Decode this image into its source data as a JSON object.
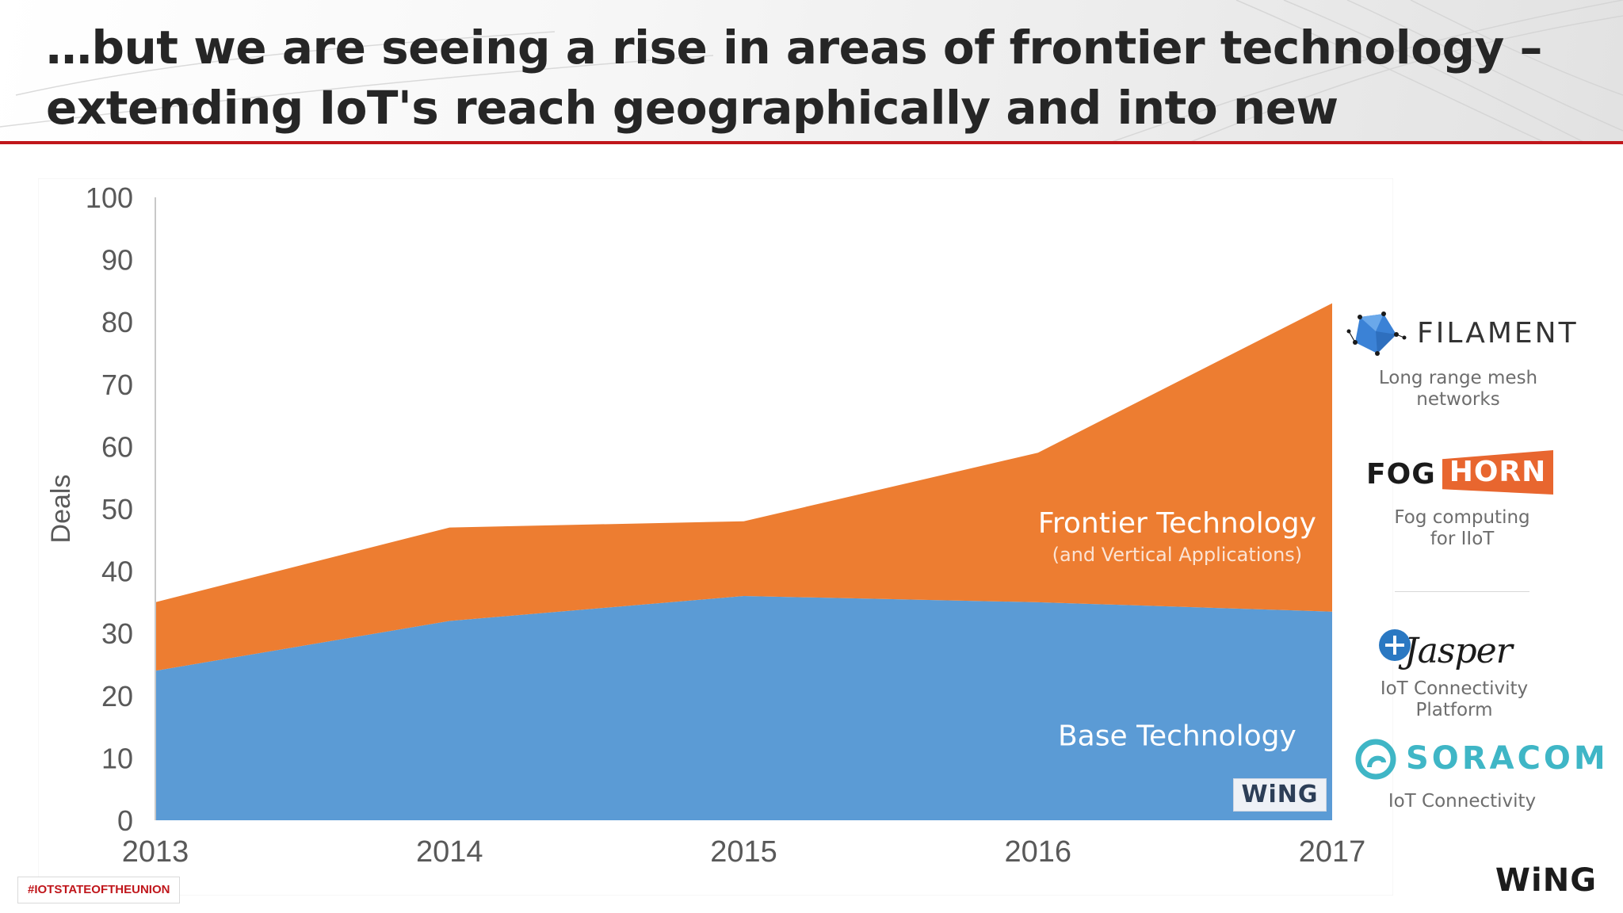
{
  "header": {
    "title_line1": "…but we are seeing a rise in areas of frontier technology –",
    "title_line2": "extending IoT's reach geographically and into new industries."
  },
  "chart_data": {
    "type": "area",
    "stacked": true,
    "x": [
      "2013",
      "2014",
      "2015",
      "2016",
      "2017"
    ],
    "series": [
      {
        "name": "Base Technology",
        "values": [
          24,
          32,
          36,
          35,
          33.5
        ],
        "color": "#5b9bd5"
      },
      {
        "name": "Frontier Technology",
        "sublabel": "(and Vertical Applications)",
        "values": [
          11,
          15,
          12,
          24,
          49.5
        ],
        "color": "#ed7d31"
      }
    ],
    "ylabel": "Deals",
    "ylim": [
      0,
      100
    ],
    "yticks": [
      "0",
      "10",
      "20",
      "30",
      "40",
      "50",
      "60",
      "70",
      "80",
      "90",
      "100"
    ],
    "grid": false
  },
  "logos": {
    "filament": {
      "name": "FILAMENT",
      "caption_line1": "Long range mesh",
      "caption_line2": "networks"
    },
    "foghorn": {
      "name_a": "FOG",
      "name_b": "HORN",
      "caption_line1": "Fog computing",
      "caption_line2": "for IIoT"
    },
    "jasper": {
      "name": "Jasper",
      "caption": "IoT Connectivity Platform"
    },
    "soracom": {
      "name": "SORACOM",
      "caption": "IoT Connectivity"
    }
  },
  "brand": {
    "chart_badge": "WiNG",
    "corner": "WiNG"
  },
  "footer": {
    "hashtag": "#IOTSTATEOFTHEUNION"
  },
  "colors": {
    "accent_red": "#c0161b",
    "base_blue": "#5b9bd5",
    "frontier_orange": "#ed7d31",
    "soracom_teal": "#3fb6c6"
  }
}
